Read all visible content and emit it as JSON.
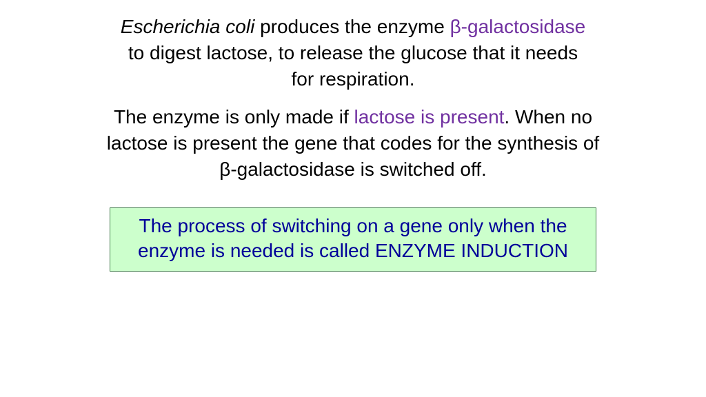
{
  "colors": {
    "background": "#ffffff",
    "text_black": "#000000",
    "highlight_purple": "#7030a0",
    "callout_bg": "#ccffcc",
    "callout_border": "#3f7a4a",
    "callout_text": "#000099"
  },
  "typography": {
    "font_family": "Comic Sans MS",
    "body_fontsize_pt": 21,
    "callout_fontsize_pt": 21
  },
  "paragraph1": {
    "seg1_italic": "Escherichia coli",
    "seg2": " produces the enzyme ",
    "seg3_highlight": "β-galactosidase",
    "seg4": " to digest lactose, to release the glucose that it needs for respiration."
  },
  "paragraph2": {
    "seg1": "The enzyme is only made if ",
    "seg2_highlight": "lactose is present",
    "seg3": ". When no lactose is present the gene that codes for the synthesis of β-galactosidase is switched off."
  },
  "callout": {
    "text": "The process of switching on a gene only when the enzyme is needed is called ENZYME INDUCTION"
  }
}
